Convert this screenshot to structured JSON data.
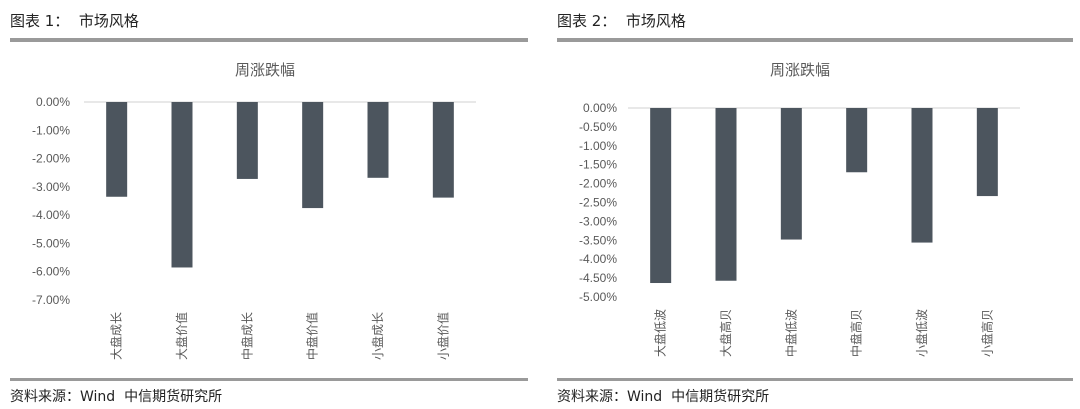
{
  "figures": [
    {
      "heading": "图表 1：  市场风格",
      "source": "资料来源：Wind  中信期货研究所",
      "chart_data": {
        "type": "bar",
        "title": "周涨跌幅",
        "categories": [
          "大盘成长",
          "大盘价值",
          "中盘成长",
          "中盘价值",
          "小盘成长",
          "小盘价值"
        ],
        "values": [
          -3.35,
          -5.85,
          -2.72,
          -3.75,
          -2.68,
          -3.38
        ],
        "ylim": [
          -7,
          0
        ],
        "yticks": [
          0,
          -1,
          -2,
          -3,
          -4,
          -5,
          -6,
          -7
        ],
        "ytick_labels": [
          "0.00%",
          "-1.00%",
          "-2.00%",
          "-3.00%",
          "-4.00%",
          "-5.00%",
          "-6.00%",
          "-7.00%"
        ],
        "bar_color": "#4c555e"
      }
    },
    {
      "heading": "图表 2：  市场风格",
      "source": "资料来源：Wind  中信期货研究所",
      "chart_data": {
        "type": "bar",
        "title": "周涨跌幅",
        "categories": [
          "大盘低波",
          "大盘高贝",
          "中盘低波",
          "中盘高贝",
          "小盘低波",
          "小盘高贝"
        ],
        "values": [
          -4.63,
          -4.57,
          -3.48,
          -1.7,
          -3.56,
          -2.33
        ],
        "ylim": [
          -5,
          0
        ],
        "yticks": [
          0,
          -0.5,
          -1,
          -1.5,
          -2,
          -2.5,
          -3,
          -3.5,
          -4,
          -4.5,
          -5
        ],
        "ytick_labels": [
          "0.00%",
          "-0.50%",
          "-1.00%",
          "-1.50%",
          "-2.00%",
          "-2.50%",
          "-3.00%",
          "-3.50%",
          "-4.00%",
          "-4.50%",
          "-5.00%"
        ],
        "bar_color": "#4c555e"
      }
    }
  ]
}
